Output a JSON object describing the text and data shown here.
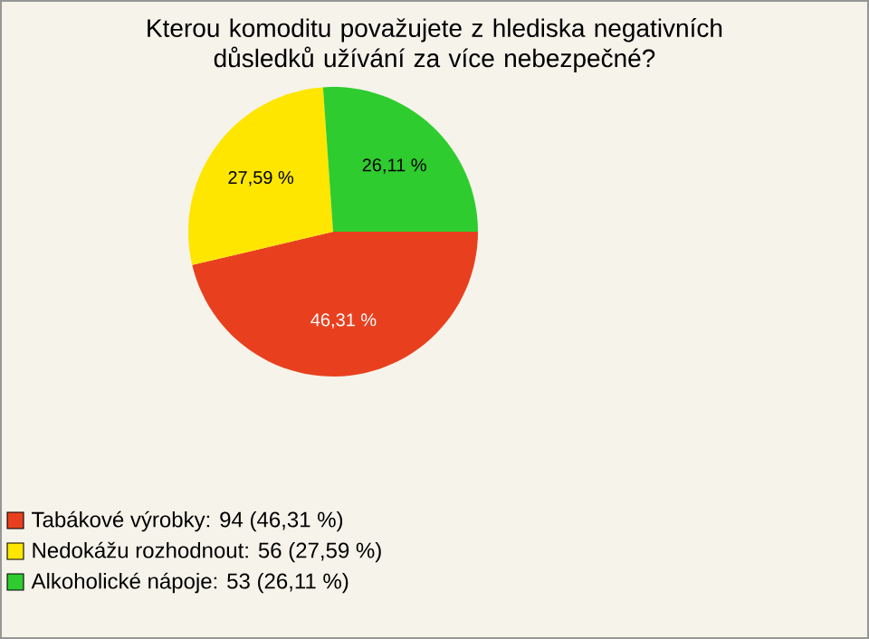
{
  "chart_data": {
    "type": "pie",
    "title": "Kterou komoditu považujete z hlediska negativních důsledků užívání za více nebezpečné?",
    "categories": [
      "Tabákové výrobky: 94 (46,31 %)",
      "Nedokážu rozhodnout: 56 (27,59 %)",
      "Alkoholické nápoje: 53 (26,11 %)"
    ],
    "values": [
      46.31,
      27.59,
      26.11
    ],
    "value_labels": [
      "46,31 %",
      "27,59 %",
      "26,11 %"
    ],
    "colors": [
      "#e8401f",
      "#ffe600",
      "#2ecc2e"
    ],
    "legend": "bottom left"
  }
}
